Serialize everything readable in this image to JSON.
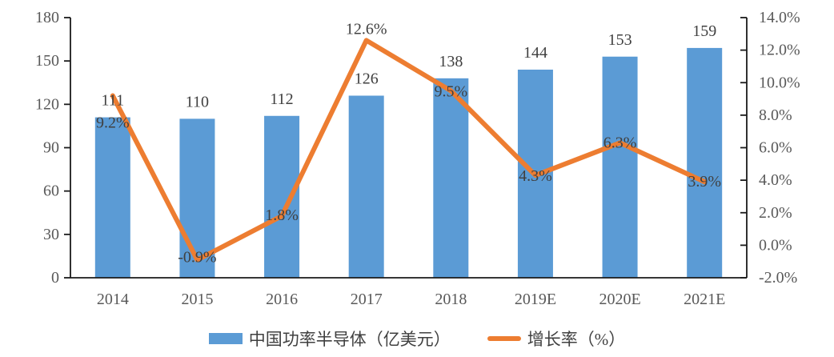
{
  "chart_data": {
    "type": "bar",
    "subtype": "combo-bar-line",
    "categories": [
      "2014",
      "2015",
      "2016",
      "2017",
      "2018",
      "2019E",
      "2020E",
      "2021E"
    ],
    "series": [
      {
        "name": "中国功率半导体（亿美元）",
        "kind": "bar",
        "axis": "left",
        "color": "#5B9BD5",
        "values": [
          111,
          110,
          112,
          126,
          138,
          144,
          153,
          159
        ],
        "value_labels": [
          "111",
          "110",
          "112",
          "126",
          "138",
          "144",
          "153",
          "159"
        ]
      },
      {
        "name": "增长率（%）",
        "kind": "line",
        "axis": "right",
        "color": "#ED7D31",
        "values": [
          9.2,
          -0.9,
          1.8,
          12.6,
          9.5,
          4.3,
          6.3,
          3.9
        ],
        "value_labels": [
          "9.2%",
          "-0.9%",
          "1.8%",
          "12.6%",
          "9.5%",
          "4.3%",
          "6.3%",
          "3.9%"
        ]
      }
    ],
    "left_axis": {
      "min": 0,
      "max": 180,
      "step": 30,
      "tick_labels": [
        "0",
        "30",
        "60",
        "90",
        "120",
        "150",
        "180"
      ]
    },
    "right_axis": {
      "min": -2,
      "max": 14,
      "step": 2,
      "tick_labels": [
        "-2.0%",
        "0.0%",
        "2.0%",
        "4.0%",
        "6.0%",
        "8.0%",
        "10.0%",
        "12.0%",
        "14.0%"
      ]
    },
    "legend": [
      {
        "label": "中国功率半导体（亿美元）",
        "color": "#5B9BD5",
        "marker": "bar"
      },
      {
        "label": "增长率（%）",
        "color": "#ED7D31",
        "marker": "line"
      }
    ],
    "grid": "off",
    "legend_position": "bottom-center",
    "colors": {
      "axis_line": "#1a1a1a",
      "axis_text": "#595959",
      "data_label_text": "#404040"
    }
  }
}
